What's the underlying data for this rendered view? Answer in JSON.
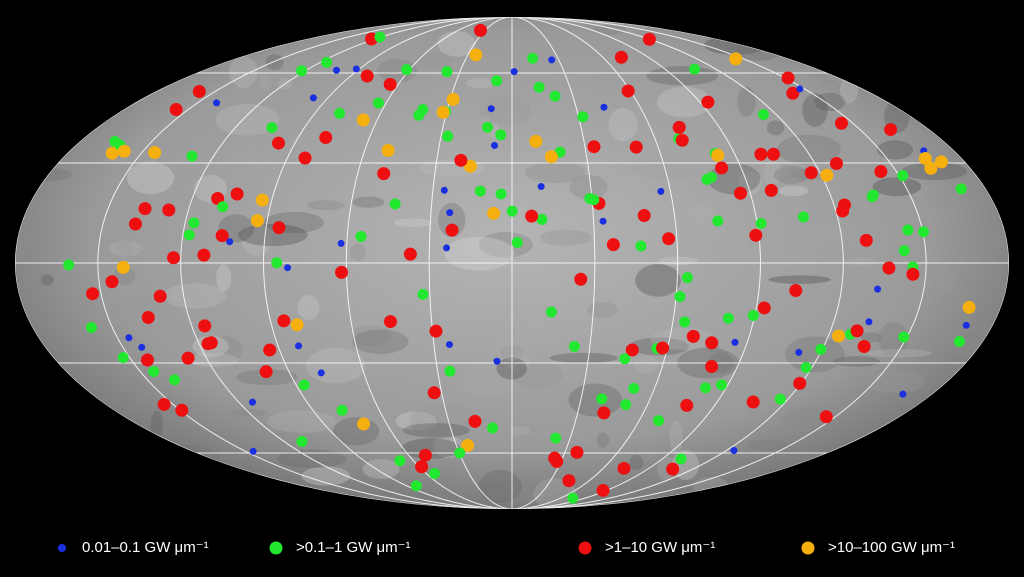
{
  "legend": {
    "items": [
      {
        "label": "0.01–0.1 GW μm⁻¹",
        "color": "#1a2fe0"
      },
      {
        "label": ">0.1–1 GW μm⁻¹",
        "color": "#22e830"
      },
      {
        "label": ">1–10 GW μm⁻¹",
        "color": "#ee1010"
      },
      {
        "label": ">10–100 GW μm⁻¹",
        "color": "#f5b010"
      }
    ]
  }
}
